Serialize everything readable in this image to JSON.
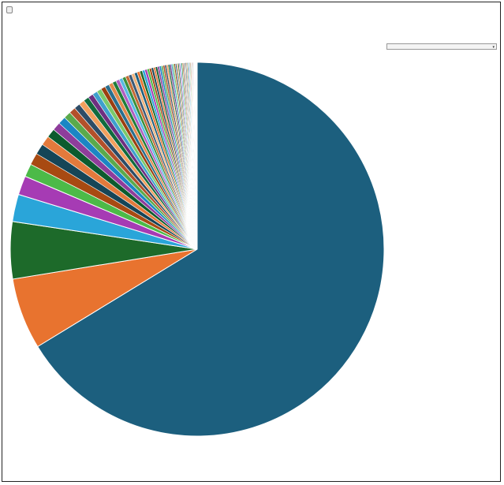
{
  "header": {
    "back_button": "",
    "chart_title": ""
  },
  "legend": {
    "select_label": "",
    "items": []
  },
  "chart_data": {
    "type": "pie",
    "title": "",
    "legend_placement": "right",
    "series_names": [],
    "values": [
      64.5,
      6.0,
      4.8,
      2.3,
      1.6,
      1.1,
      1.0,
      0.9,
      0.8,
      0.75,
      0.7,
      0.65,
      0.6,
      0.55,
      0.5,
      0.48,
      0.46,
      0.44,
      0.42,
      0.4,
      0.38,
      0.36,
      0.34,
      0.32,
      0.3,
      0.29,
      0.28,
      0.27,
      0.26,
      0.25,
      0.24,
      0.23,
      0.22,
      0.21,
      0.2,
      0.19,
      0.18,
      0.18,
      0.17,
      0.17,
      0.16,
      0.16,
      0.15,
      0.15,
      0.14,
      0.14,
      0.13,
      0.13,
      0.12,
      0.12,
      0.11,
      0.11,
      0.1,
      0.1,
      0.1,
      0.09,
      0.09,
      0.09,
      0.08,
      0.08,
      0.08,
      0.07,
      0.07,
      0.07,
      0.06,
      0.06,
      0.06,
      0.05,
      0.05,
      0.05,
      0.05,
      0.04,
      0.04,
      0.04,
      0.04,
      0.03,
      0.03,
      0.03,
      0.03,
      0.03
    ],
    "colors": [
      "#1c5f7e",
      "#e8732f",
      "#1d6a2a",
      "#2aa5d9",
      "#a63bb4",
      "#4cba48",
      "#a84a12",
      "#164557",
      "#e37a3c",
      "#0c5b2e",
      "#8e3d9b",
      "#1b86c4",
      "#5aaa4c",
      "#b3502a",
      "#2e4c66",
      "#f2a05e",
      "#116b3e",
      "#6e2f81",
      "#3ea0ce",
      "#7ac96c",
      "#9c3f10",
      "#2a6f8f",
      "#e38a4d",
      "#1f7d3b",
      "#b05fc0",
      "#58b9e3",
      "#3b8f3a",
      "#c46a35",
      "#3c5a78",
      "#f0b27a"
    ]
  }
}
